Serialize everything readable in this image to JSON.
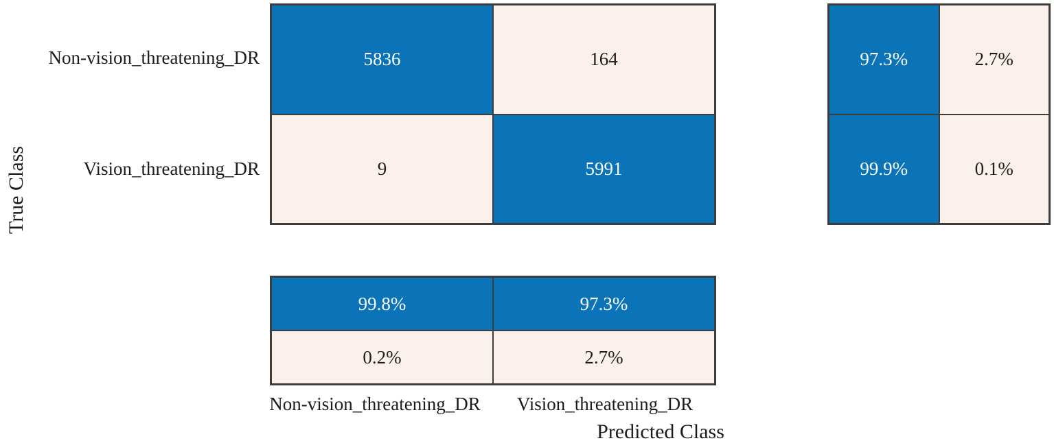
{
  "axes": {
    "y_label": "True Class",
    "x_label": "Predicted Class"
  },
  "classes": {
    "row1": "Non-vision_threatening_DR",
    "row2": "Vision_threatening_DR",
    "col1": "Non-vision_threatening_DR",
    "col2": "Vision_threatening_DR"
  },
  "matrix": {
    "r1c1": "5836",
    "r1c2": "164",
    "r2c1": "9",
    "r2c2": "5991"
  },
  "row_summary": {
    "r1_correct": "97.3%",
    "r1_incorrect": "2.7%",
    "r2_correct": "99.9%",
    "r2_incorrect": "0.1%"
  },
  "column_summary": {
    "c1_correct": "99.8%",
    "c2_correct": "97.3%",
    "c1_incorrect": "0.2%",
    "c2_incorrect": "2.7%"
  },
  "colors": {
    "diagonal_blue": "#0b73b7",
    "off_diagonal_tint": "#fbf1ea",
    "grid_border": "#3d3d3d"
  },
  "chart_data": {
    "type": "heatmap",
    "subtype": "confusion-matrix",
    "x_categories": [
      "Non-vision_threatening_DR",
      "Vision_threatening_DR"
    ],
    "y_categories": [
      "Non-vision_threatening_DR",
      "Vision_threatening_DR"
    ],
    "values": [
      [
        5836,
        164
      ],
      [
        9,
        5991
      ]
    ],
    "row_summary_percent": [
      [
        97.3,
        2.7
      ],
      [
        99.9,
        0.1
      ]
    ],
    "column_summary_percent": [
      [
        99.8,
        97.3
      ],
      [
        0.2,
        2.7
      ]
    ],
    "xlabel": "Predicted Class",
    "ylabel": "True Class",
    "legend_position": "none",
    "grid": false,
    "highlight_color": "#0b73b7",
    "background_color": "#fbf1ea"
  }
}
